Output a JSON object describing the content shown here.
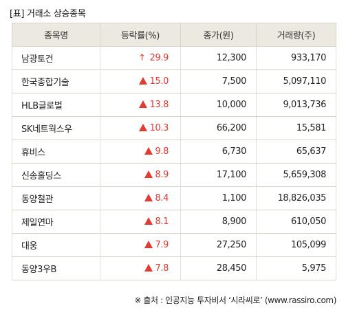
{
  "title": "[표] 거래소 상승종목",
  "headers": [
    "종목명",
    "등락률(%)",
    "종가(원)",
    "거래량(주)"
  ],
  "rows": [
    {
      "name": "남광토건",
      "rate": "29.9",
      "marker": "↑",
      "price": "12,300",
      "volume": "933,170"
    },
    {
      "name": "한국종합기술",
      "rate": "15.0",
      "marker": "▲",
      "price": "7,500",
      "volume": "5,097,110"
    },
    {
      "name": "HLB글로벌",
      "rate": "13.8",
      "marker": "▲",
      "price": "10,000",
      "volume": "9,013,736"
    },
    {
      "name": "SK네트웍스우",
      "rate": "10.3",
      "marker": "▲",
      "price": "66,200",
      "volume": "15,581"
    },
    {
      "name": "휴비스",
      "rate": "9.8",
      "marker": "▲",
      "price": "6,730",
      "volume": "65,637"
    },
    {
      "name": "신송홀딩스",
      "rate": "8.9",
      "marker": "▲",
      "price": "17,100",
      "volume": "5,659,308"
    },
    {
      "name": "동양철관",
      "rate": "8.4",
      "marker": "▲",
      "price": "1,100",
      "volume": "18,826,035"
    },
    {
      "name": "제일연마",
      "rate": "8.1",
      "marker": "▲",
      "price": "8,900",
      "volume": "610,050"
    },
    {
      "name": "대웅",
      "rate": "7.9",
      "marker": "▲",
      "price": "27,250",
      "volume": "105,099"
    },
    {
      "name": "동양3우B",
      "rate": "7.8",
      "marker": "▲",
      "price": "28,450",
      "volume": "5,975"
    }
  ],
  "source": "※ 출처 : 인공지능 투자비서 ‘시라씨로’ (www.rassiro.com)",
  "colors": {
    "up": "#e53a2f",
    "header_bg": "#ece9e0",
    "border": "#d7d3c8"
  }
}
